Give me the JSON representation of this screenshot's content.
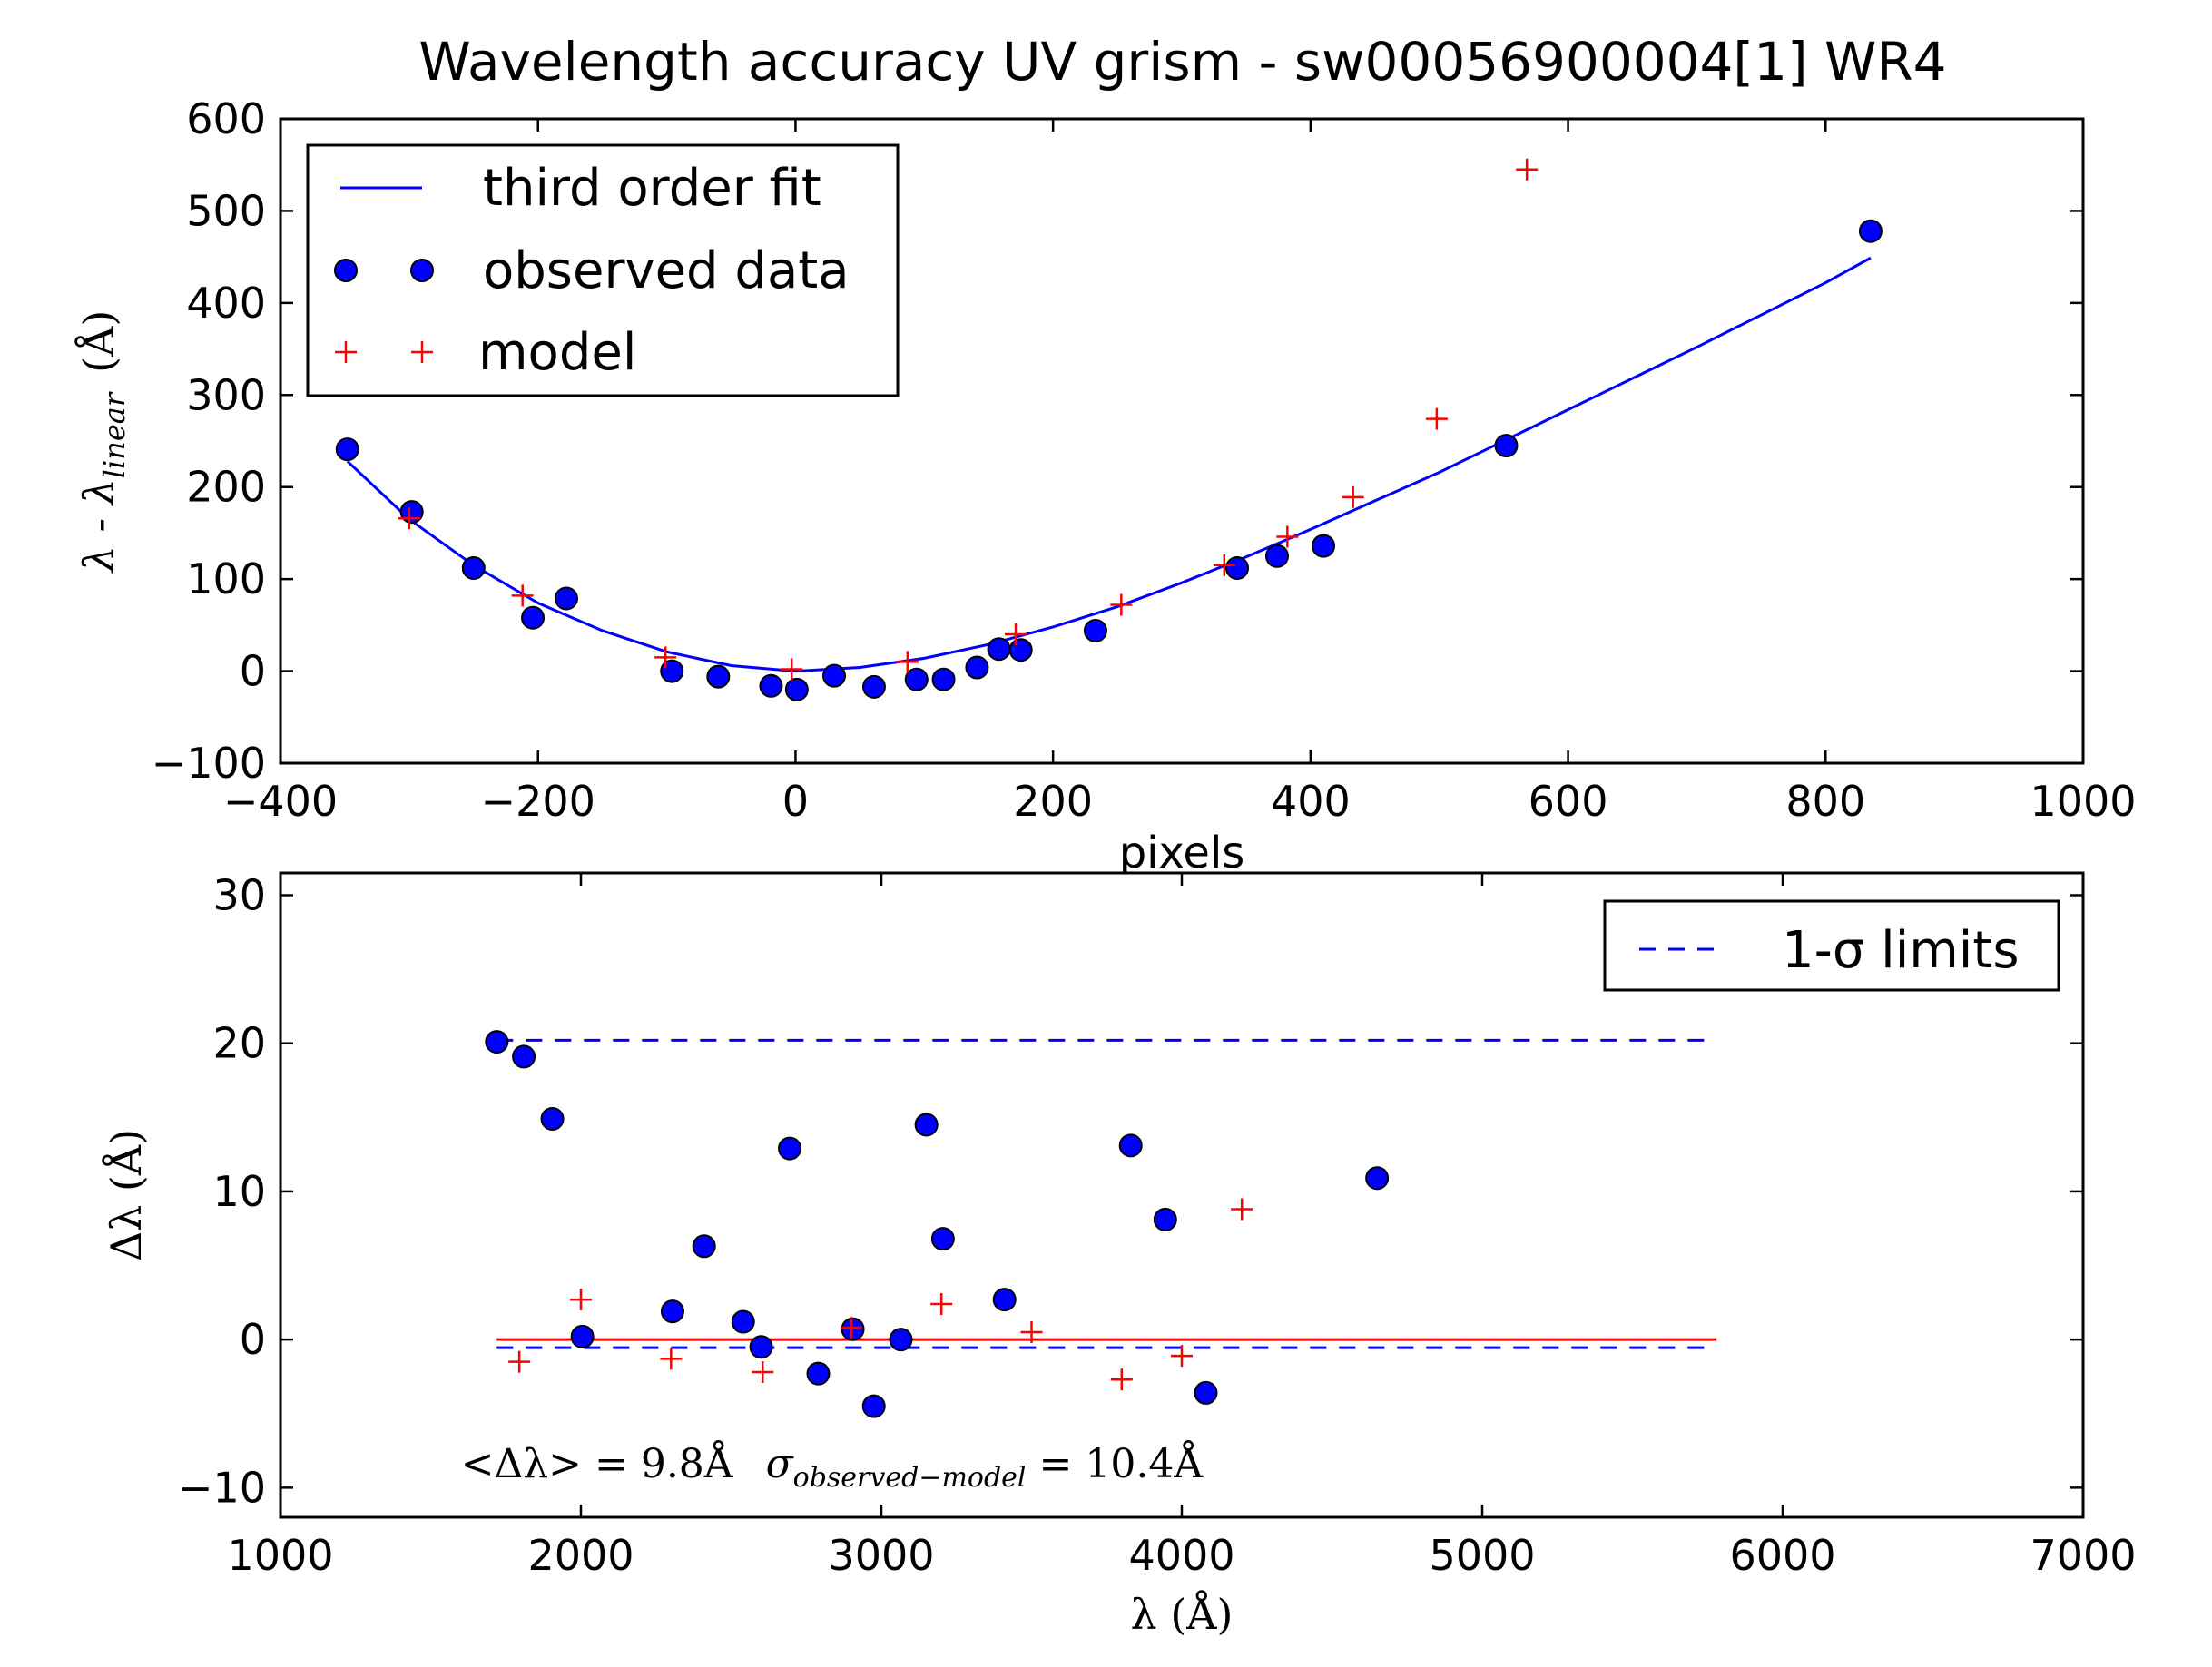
{
  "title": "Wavelength accuracy UV grism - sw00056900004[1] WR4",
  "colors": {
    "fit_line": "#0000ff",
    "observed_fill": "#0000ff",
    "model_marker": "#ff0000",
    "sigma_limits": "#0000ff",
    "zero_line": "#ff0000"
  },
  "chart_data": [
    {
      "type": "scatter",
      "xlabel": "pixels",
      "ylabel": "λ - λ",
      "ylabel_sub": "linear",
      "ylabel_unit": "(Å)",
      "xlim": [
        -400,
        1000
      ],
      "ylim": [
        -100,
        600
      ],
      "xticks": [
        -400,
        -200,
        0,
        200,
        400,
        600,
        800,
        1000
      ],
      "yticks": [
        -100,
        0,
        100,
        200,
        300,
        400,
        500,
        600
      ],
      "xtick_labels": [
        "−400",
        "−200",
        "0",
        "200",
        "400",
        "600",
        "800",
        "1000"
      ],
      "ytick_labels": [
        "−100",
        "0",
        "100",
        "200",
        "300",
        "400",
        "500",
        "600"
      ],
      "legend_position": "top-left",
      "series": [
        {
          "name": "third order fit",
          "kind": "line",
          "x": [
            -348,
            -300,
            -250,
            -200,
            -150,
            -100,
            -50,
            0,
            50,
            100,
            150,
            200,
            250,
            300,
            350,
            400,
            450,
            500,
            550,
            600,
            650,
            700,
            750,
            800,
            835
          ],
          "y": [
            228,
            165,
            115,
            74,
            44,
            21,
            6,
            0,
            4,
            14,
            29,
            48,
            70,
            96,
            124,
            154,
            185,
            216,
            250,
            284,
            318,
            352,
            387,
            422,
            449
          ]
        },
        {
          "name": "observed data",
          "kind": "circle",
          "x": [
            -348,
            -298,
            -250,
            -204,
            -178,
            -96,
            -60,
            -19,
            1,
            30,
            61,
            94,
            115,
            141,
            158,
            175,
            233,
            343,
            374,
            410,
            552,
            835
          ],
          "y": [
            241,
            173,
            112,
            58,
            79,
            0,
            -6,
            -16,
            -20,
            -5,
            -17,
            -9,
            -9,
            4,
            24,
            23,
            44,
            112,
            125,
            136,
            245,
            478
          ]
        },
        {
          "name": "model",
          "kind": "plus",
          "x": [
            -300,
            -212,
            -101,
            -3,
            87,
            171,
            253,
            333,
            382,
            433,
            498,
            568
          ],
          "y": [
            166,
            82,
            15,
            2,
            10,
            40,
            72,
            115,
            146,
            189,
            274,
            545
          ]
        }
      ]
    },
    {
      "type": "scatter",
      "xlabel": "λ (Å)",
      "ylabel": "Δλ (Å)",
      "xlim": [
        1000,
        7000
      ],
      "ylim": [
        -12,
        31.5
      ],
      "xticks": [
        1000,
        2000,
        3000,
        4000,
        5000,
        6000,
        7000
      ],
      "yticks": [
        -10,
        0,
        10,
        20,
        30
      ],
      "xtick_labels": [
        "1000",
        "2000",
        "3000",
        "4000",
        "5000",
        "6000",
        "7000"
      ],
      "ytick_labels": [
        "−10",
        "0",
        "10",
        "20",
        "30"
      ],
      "legend_position": "top-right",
      "series": [
        {
          "name": "1-σ limits",
          "kind": "dashed-line",
          "segments": [
            {
              "x": [
                1720,
                5780
              ],
              "y": [
                20.2,
                20.2
              ]
            },
            {
              "x": [
                1720,
                5780
              ],
              "y": [
                -0.55,
                -0.55
              ]
            }
          ]
        },
        {
          "kind": "line",
          "x": [
            1720,
            5780
          ],
          "y": [
            0,
            0
          ]
        },
        {
          "kind": "circle",
          "x": [
            1720,
            1810,
            1905,
            2005,
            2305,
            2410,
            2540,
            2600,
            2695,
            2790,
            2905,
            2975,
            3065,
            3150,
            3205,
            3410,
            3830,
            3945,
            4080,
            4650
          ],
          "y": [
            20.1,
            19.1,
            14.9,
            0.2,
            1.9,
            6.3,
            1.2,
            -0.5,
            12.9,
            -2.3,
            0.7,
            -4.5,
            0.0,
            14.5,
            6.8,
            2.7,
            13.1,
            8.1,
            -3.6,
            10.9
          ]
        },
        {
          "kind": "plus",
          "x": [
            1795,
            2000,
            2300,
            2605,
            2900,
            3200,
            3500,
            3800,
            4000,
            4200
          ],
          "y": [
            -1.5,
            2.7,
            -1.3,
            -2.2,
            0.8,
            2.4,
            0.5,
            -2.7,
            -1.1,
            8.8
          ]
        }
      ],
      "annotation": {
        "mean_text": "<Δλ> = 9.8Å",
        "sigma_symbol": "σ",
        "sigma_sub": "observed−model",
        "sigma_value": " = 10.4Å",
        "x": 1600,
        "y": -9.3
      }
    }
  ]
}
